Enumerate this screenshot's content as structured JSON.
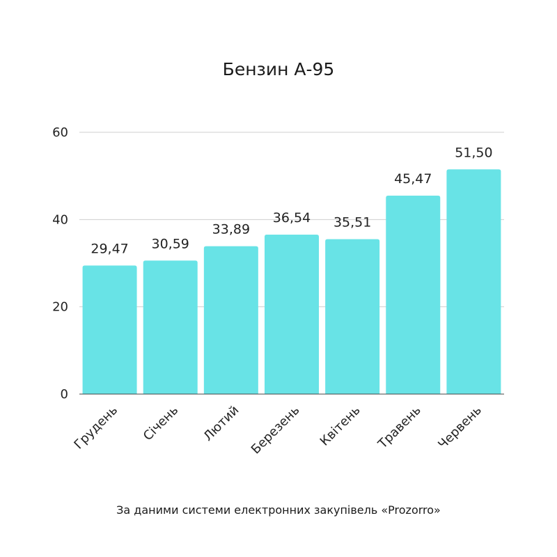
{
  "chart_data": {
    "type": "bar",
    "title": "Бензин А-95",
    "categories": [
      "Грудень",
      "Січень",
      "Лютий",
      "Березень",
      "Квітень",
      "Травень",
      "Червень"
    ],
    "values": [
      29.47,
      30.59,
      33.89,
      36.54,
      35.51,
      45.47,
      51.5
    ],
    "value_labels": [
      "29,47",
      "30,59",
      "33,89",
      "36,54",
      "35,51",
      "45,47",
      "51,50"
    ],
    "ylim": [
      0,
      60
    ],
    "yticks": [
      0,
      20,
      40,
      60
    ],
    "ytick_labels": [
      "0",
      "20",
      "40",
      "60"
    ],
    "grid": true,
    "bar_color": "#68E3E6",
    "source": "За даними системи електронних закупівель «Prozorro»"
  }
}
